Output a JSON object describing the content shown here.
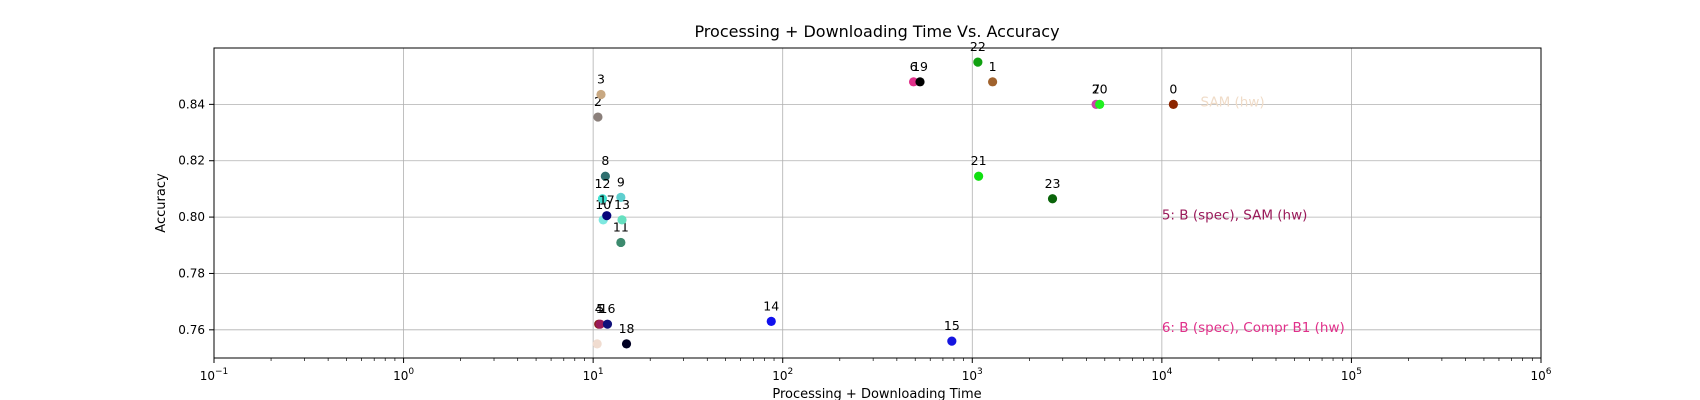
{
  "chart_data": {
    "type": "scatter",
    "title": "Processing + Downloading Time Vs. Accuracy",
    "xlabel": "Processing + Downloading Time",
    "ylabel": "Accuracy",
    "xscale": "log",
    "xlim": [
      0.1,
      1000000
    ],
    "ylim": [
      0.75,
      0.86
    ],
    "grid": true,
    "x_ticks": [
      {
        "value": 0.1,
        "base": "10",
        "exp": "−1"
      },
      {
        "value": 1,
        "base": "10",
        "exp": "0"
      },
      {
        "value": 10,
        "base": "10",
        "exp": "1"
      },
      {
        "value": 100,
        "base": "10",
        "exp": "2"
      },
      {
        "value": 1000,
        "base": "10",
        "exp": "3"
      },
      {
        "value": 10000,
        "base": "10",
        "exp": "4"
      },
      {
        "value": 100000,
        "base": "10",
        "exp": "5"
      },
      {
        "value": 1000000,
        "base": "10",
        "exp": "6"
      }
    ],
    "y_ticks": [
      {
        "value": 0.76,
        "label": "0.76"
      },
      {
        "value": 0.78,
        "label": "0.78"
      },
      {
        "value": 0.8,
        "label": "0.80"
      },
      {
        "value": 0.82,
        "label": "0.82"
      },
      {
        "value": 0.84,
        "label": "0.84"
      }
    ],
    "points": [
      {
        "label": "0",
        "x": 11500,
        "y": 0.84,
        "color": "#8b2500"
      },
      {
        "label": "1",
        "x": 1280,
        "y": 0.848,
        "color": "#a0622d"
      },
      {
        "label": "2",
        "x": 10.6,
        "y": 0.8355,
        "color": "#8a7f7a"
      },
      {
        "label": "3",
        "x": 11.0,
        "y": 0.8435,
        "color": "#c8a882"
      },
      {
        "label": "4",
        "x": 10.7,
        "y": 0.762,
        "color": "#8b2020"
      },
      {
        "label": "5",
        "x": 10.9,
        "y": 0.762,
        "color": "#9a1a5a"
      },
      {
        "label": "6",
        "x": 490,
        "y": 0.848,
        "color": "#e0308a"
      },
      {
        "label": "7",
        "x": 4500,
        "y": 0.84,
        "color": "#cc44aa"
      },
      {
        "label": "8",
        "x": 11.6,
        "y": 0.8145,
        "color": "#2f6f6f"
      },
      {
        "label": "9",
        "x": 14.0,
        "y": 0.807,
        "color": "#5fcfcf"
      },
      {
        "label": "10",
        "x": 11.3,
        "y": 0.799,
        "color": "#7ee8e0"
      },
      {
        "label": "11",
        "x": 14.0,
        "y": 0.791,
        "color": "#3c8a6e"
      },
      {
        "label": "12",
        "x": 11.2,
        "y": 0.8065,
        "color": "#40e0d0"
      },
      {
        "label": "13",
        "x": 14.2,
        "y": 0.799,
        "color": "#66e0c0"
      },
      {
        "label": "14",
        "x": 87,
        "y": 0.763,
        "color": "#1010ee"
      },
      {
        "label": "15",
        "x": 780,
        "y": 0.756,
        "color": "#1515e0"
      },
      {
        "label": "16",
        "x": 11.9,
        "y": 0.762,
        "color": "#10107a"
      },
      {
        "label": "17",
        "x": 11.8,
        "y": 0.8005,
        "color": "#05057a"
      },
      {
        "label": "18",
        "x": 15.0,
        "y": 0.755,
        "color": "#000022"
      },
      {
        "label": "19",
        "x": 530,
        "y": 0.848,
        "color": "#000000"
      },
      {
        "label": "20",
        "x": 4700,
        "y": 0.84,
        "color": "#20f020"
      },
      {
        "label": "21",
        "x": 1080,
        "y": 0.8145,
        "color": "#10e010"
      },
      {
        "label": "22",
        "x": 1070,
        "y": 0.855,
        "color": "#10a010"
      },
      {
        "label": "23",
        "x": 2650,
        "y": 0.8065,
        "color": "#0a640a"
      },
      {
        "label": "",
        "x": 10.5,
        "y": 0.755,
        "color": "#f0dcd0"
      }
    ],
    "annotations": [
      {
        "text": "SAM (hw)",
        "x": 16000,
        "y": 0.841,
        "color": "#f0dcc8"
      },
      {
        "text": "5:  B (spec), SAM (hw)",
        "x": 10000,
        "y": 0.801,
        "color": "#9a1a5a"
      },
      {
        "text": "6:  B (spec), Compr B1 (hw)",
        "x": 10000,
        "y": 0.761,
        "color": "#e0308a"
      }
    ]
  }
}
